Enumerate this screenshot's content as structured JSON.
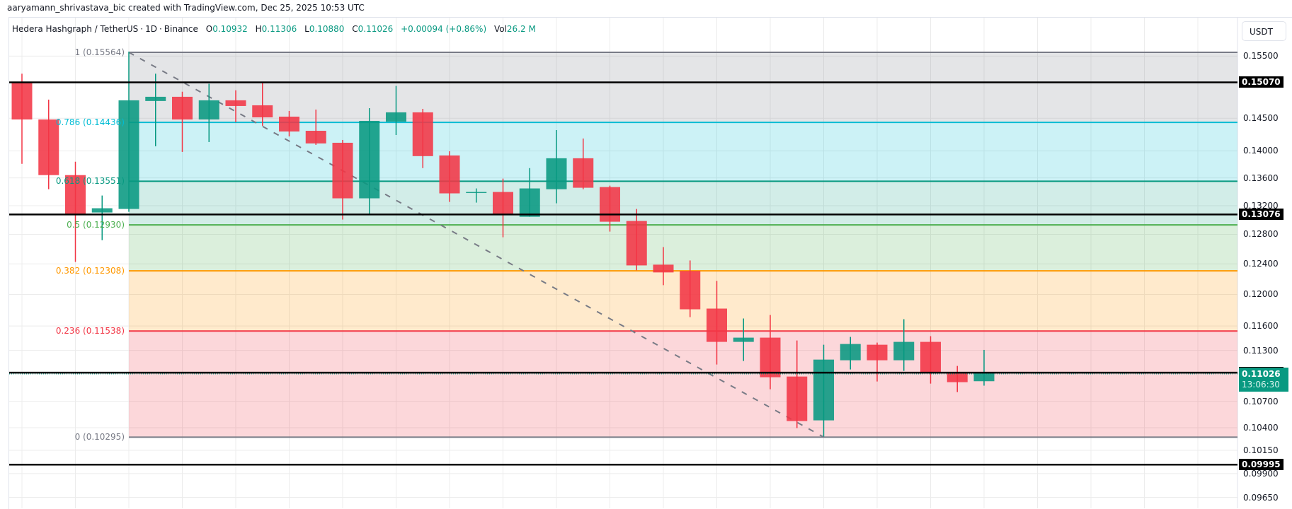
{
  "credit": "aaryamann_shrivastava_bic created with TradingView.com, Dec 25, 2025 10:53 UTC",
  "legend": {
    "symbol": "Hedera Hashgraph / TetherUS",
    "interval": "1D",
    "exchange": "Binance",
    "open_label": "O",
    "open": "0.10932",
    "high_label": "H",
    "high": "0.11306",
    "low_label": "L",
    "low": "0.10880",
    "close_label": "C",
    "close": "0.11026",
    "change": "+0.00094 (+0.86%)",
    "volume_label": "Vol",
    "volume": "26.2 M"
  },
  "currency_button": "USDT",
  "colors": {
    "up": "#089981",
    "down": "#f23645",
    "grid": "#ececec",
    "axis_text": "#131722",
    "fib_1": "#787b86",
    "fib_0786": "#00bcd4",
    "fib_0618": "#089981",
    "fib_05": "#4caf50",
    "fib_0382": "#ff9800",
    "fib_0236": "#f23645",
    "fib_0": "#787b86",
    "hline": "#000000",
    "last_price_bg": "#089981"
  },
  "chart_data": {
    "type": "candlestick",
    "title": "Hedera Hashgraph / TetherUS · 1D · Binance",
    "ylabel": "USDT",
    "yscale": "log",
    "ylim": [
      0.0955,
      0.1575
    ],
    "grid": true,
    "y_ticks": [
      "0.15500",
      "0.14500",
      "0.14000",
      "0.13600",
      "0.13200",
      "0.12800",
      "0.12400",
      "0.12000",
      "0.11600",
      "0.11300",
      "0.10700",
      "0.10400",
      "0.10150",
      "0.09900",
      "0.09650"
    ],
    "candles": [
      {
        "o": 0.1507,
        "h": 0.15211,
        "l": 0.13807,
        "c": 0.14481
      },
      {
        "o": 0.14481,
        "h": 0.14793,
        "l": 0.13436,
        "c": 0.13641
      },
      {
        "o": 0.13641,
        "h": 0.13838,
        "l": 0.12427,
        "c": 0.13084
      },
      {
        "o": 0.13104,
        "h": 0.13345,
        "l": 0.1272,
        "c": 0.13164
      },
      {
        "o": 0.13154,
        "h": 0.15576,
        "l": 0.13114,
        "c": 0.14782
      },
      {
        "o": 0.14771,
        "h": 0.15211,
        "l": 0.1407,
        "c": 0.14838
      },
      {
        "o": 0.14838,
        "h": 0.14919,
        "l": 0.13985,
        "c": 0.14481
      },
      {
        "o": 0.14481,
        "h": 0.15047,
        "l": 0.14134,
        "c": 0.14782
      },
      {
        "o": 0.14782,
        "h": 0.14942,
        "l": 0.14437,
        "c": 0.14692
      },
      {
        "o": 0.14703,
        "h": 0.1507,
        "l": 0.14383,
        "c": 0.14514
      },
      {
        "o": 0.14525,
        "h": 0.14614,
        "l": 0.1422,
        "c": 0.14295
      },
      {
        "o": 0.14306,
        "h": 0.14636,
        "l": 0.14091,
        "c": 0.14113
      },
      {
        "o": 0.14123,
        "h": 0.14166,
        "l": 0.13005,
        "c": 0.13305
      },
      {
        "o": 0.13305,
        "h": 0.14658,
        "l": 0.13084,
        "c": 0.14459
      },
      {
        "o": 0.14448,
        "h": 0.15012,
        "l": 0.14241,
        "c": 0.14592
      },
      {
        "o": 0.14592,
        "h": 0.14647,
        "l": 0.13744,
        "c": 0.13922
      },
      {
        "o": 0.13932,
        "h": 0.13995,
        "l": 0.13254,
        "c": 0.13376
      },
      {
        "o": 0.13386,
        "h": 0.13447,
        "l": 0.13244,
        "c": 0.13396
      },
      {
        "o": 0.13396,
        "h": 0.1359,
        "l": 0.1276,
        "c": 0.13084
      },
      {
        "o": 0.13044,
        "h": 0.13744,
        "l": 0.13044,
        "c": 0.13447
      },
      {
        "o": 0.13436,
        "h": 0.14317,
        "l": 0.13234,
        "c": 0.1389
      },
      {
        "o": 0.1389,
        "h": 0.14188,
        "l": 0.13436,
        "c": 0.13457
      },
      {
        "o": 0.13467,
        "h": 0.13487,
        "l": 0.12838,
        "c": 0.12975
      },
      {
        "o": 0.12985,
        "h": 0.13154,
        "l": 0.12315,
        "c": 0.1238
      },
      {
        "o": 0.1239,
        "h": 0.12626,
        "l": 0.1212,
        "c": 0.12287
      },
      {
        "o": 0.12306,
        "h": 0.12446,
        "l": 0.11711,
        "c": 0.1181
      },
      {
        "o": 0.11819,
        "h": 0.12176,
        "l": 0.1113,
        "c": 0.11404
      },
      {
        "o": 0.11404,
        "h": 0.11694,
        "l": 0.11172,
        "c": 0.11456
      },
      {
        "o": 0.11456,
        "h": 0.11738,
        "l": 0.10838,
        "c": 0.10979
      },
      {
        "o": 0.10987,
        "h": 0.11421,
        "l": 0.10395,
        "c": 0.10474
      },
      {
        "o": 0.10482,
        "h": 0.11369,
        "l": 0.10301,
        "c": 0.11189
      },
      {
        "o": 0.11181,
        "h": 0.11465,
        "l": 0.11071,
        "c": 0.11378
      },
      {
        "o": 0.11369,
        "h": 0.11395,
        "l": 0.10929,
        "c": 0.11181
      },
      {
        "o": 0.11181,
        "h": 0.11685,
        "l": 0.11054,
        "c": 0.11404
      },
      {
        "o": 0.11404,
        "h": 0.11474,
        "l": 0.10904,
        "c": 0.11029
      },
      {
        "o": 0.11029,
        "h": 0.11113,
        "l": 0.10805,
        "c": 0.10921
      },
      {
        "o": 0.10932,
        "h": 0.11306,
        "l": 0.1088,
        "c": 0.11026
      }
    ],
    "fib_retracement": {
      "start_index": 4,
      "levels": [
        {
          "ratio": "1",
          "price": 0.15564,
          "label": "1 (0.15564)",
          "color": "#787b86",
          "fill": "rgba(120,123,134,0.2)"
        },
        {
          "ratio": "0.786",
          "price": 0.14436,
          "label": "0.786 (0.14436)",
          "color": "#00bcd4",
          "fill": "rgba(0,188,212,0.2)"
        },
        {
          "ratio": "0.618",
          "price": 0.13551,
          "label": "0.618 (0.13551)",
          "color": "#089981",
          "fill": "rgba(8,153,129,0.18)"
        },
        {
          "ratio": "0.5",
          "price": 0.1293,
          "label": "0.5 (0.12930)",
          "color": "#4caf50",
          "fill": "rgba(76,175,80,0.2)"
        },
        {
          "ratio": "0.382",
          "price": 0.12308,
          "label": "0.382 (0.12308)",
          "color": "#ff9800",
          "fill": "rgba(255,152,0,0.2)"
        },
        {
          "ratio": "0.236",
          "price": 0.11538,
          "label": "0.236 (0.11538)",
          "color": "#f23645",
          "fill": "rgba(242,54,69,0.2)"
        },
        {
          "ratio": "0",
          "price": 0.10295,
          "label": "0 (0.10295)",
          "color": "#787b86",
          "fill": null
        }
      ],
      "trend_line": {
        "from_index": 4,
        "from_price": 0.15564,
        "to_index": 30,
        "to_price": 0.10295
      }
    },
    "horizontal_lines": [
      {
        "price": 0.1507,
        "label": "0.15070"
      },
      {
        "price": 0.13076,
        "label": "0.13076"
      },
      {
        "price": 0.11033,
        "label": "0.11033"
      },
      {
        "price": 0.09995,
        "label": "0.09995"
      }
    ],
    "last_price": {
      "price": "0.11026",
      "countdown": "13:06:30"
    }
  }
}
